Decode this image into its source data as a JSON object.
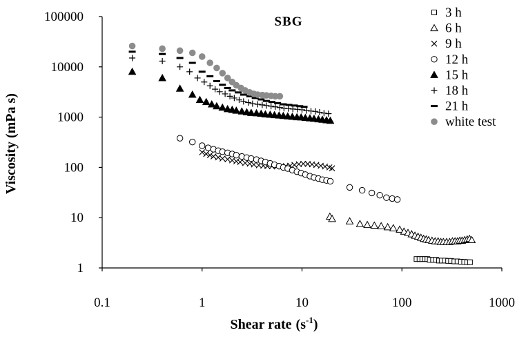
{
  "chart_data": {
    "type": "scatter",
    "title": "SBG",
    "xlabel": "Shear rate",
    "xlabel_unit_base": "(s",
    "xlabel_unit_exp": "-1",
    "xlabel_unit_close": ")",
    "ylabel": "Viscosity (mPa s)",
    "xscale": "log",
    "yscale": "log",
    "xlim": [
      0.1,
      1000
    ],
    "ylim": [
      1,
      100000
    ],
    "x_ticks": [
      {
        "value": 0.1,
        "label": "0.1"
      },
      {
        "value": 1,
        "label": "1"
      },
      {
        "value": 10,
        "label": "10"
      },
      {
        "value": 100,
        "label": "100"
      },
      {
        "value": 1000,
        "label": "1000"
      }
    ],
    "y_ticks": [
      {
        "value": 1,
        "label": "1"
      },
      {
        "value": 10,
        "label": "10"
      },
      {
        "value": 100,
        "label": "100"
      },
      {
        "value": 1000,
        "label": "1000"
      },
      {
        "value": 10000,
        "label": "10000"
      },
      {
        "value": 100000,
        "label": "100000"
      }
    ],
    "grid": false,
    "legend_position": "top-right",
    "series": [
      {
        "name": "3 h",
        "marker": "square-open",
        "points": [
          [
            140,
            1.5
          ],
          [
            150,
            1.5
          ],
          [
            160,
            1.5
          ],
          [
            170,
            1.5
          ],
          [
            180,
            1.5
          ],
          [
            190,
            1.45
          ],
          [
            205,
            1.45
          ],
          [
            220,
            1.45
          ],
          [
            235,
            1.4
          ],
          [
            250,
            1.4
          ],
          [
            270,
            1.4
          ],
          [
            290,
            1.38
          ],
          [
            310,
            1.38
          ],
          [
            335,
            1.35
          ],
          [
            360,
            1.35
          ],
          [
            390,
            1.33
          ],
          [
            420,
            1.32
          ],
          [
            450,
            1.3
          ],
          [
            480,
            1.3
          ]
        ]
      },
      {
        "name": "6 h",
        "marker": "triangle-open",
        "points": [
          [
            19,
            10.5
          ],
          [
            20,
            9.5
          ],
          [
            30,
            8.5
          ],
          [
            38,
            7.5
          ],
          [
            45,
            7.2
          ],
          [
            53,
            7.0
          ],
          [
            62,
            6.8
          ],
          [
            72,
            6.5
          ],
          [
            82,
            6.2
          ],
          [
            95,
            5.8
          ],
          [
            105,
            5.3
          ],
          [
            115,
            5.0
          ],
          [
            125,
            4.7
          ],
          [
            135,
            4.4
          ],
          [
            145,
            4.2
          ],
          [
            155,
            4.0
          ],
          [
            165,
            3.8
          ],
          [
            175,
            3.7
          ],
          [
            185,
            3.6
          ],
          [
            200,
            3.5
          ],
          [
            215,
            3.4
          ],
          [
            230,
            3.4
          ],
          [
            245,
            3.3
          ],
          [
            260,
            3.3
          ],
          [
            280,
            3.3
          ],
          [
            300,
            3.3
          ],
          [
            320,
            3.4
          ],
          [
            340,
            3.4
          ],
          [
            360,
            3.4
          ],
          [
            380,
            3.5
          ],
          [
            400,
            3.5
          ],
          [
            425,
            3.6
          ],
          [
            450,
            3.7
          ],
          [
            475,
            3.8
          ],
          [
            500,
            3.6
          ]
        ]
      },
      {
        "name": "9 h",
        "marker": "x",
        "points": [
          [
            1.0,
            200
          ],
          [
            1.1,
            185
          ],
          [
            1.2,
            175
          ],
          [
            1.3,
            165
          ],
          [
            1.45,
            158
          ],
          [
            1.6,
            150
          ],
          [
            1.8,
            145
          ],
          [
            2.0,
            138
          ],
          [
            2.2,
            132
          ],
          [
            2.4,
            128
          ],
          [
            2.7,
            122
          ],
          [
            3.0,
            118
          ],
          [
            3.3,
            114
          ],
          [
            3.7,
            110
          ],
          [
            4.1,
            108
          ],
          [
            4.5,
            106
          ],
          [
            5.0,
            105
          ],
          [
            5.6,
            104
          ],
          [
            6.2,
            104
          ],
          [
            6.9,
            106
          ],
          [
            7.6,
            108
          ],
          [
            8.4,
            112
          ],
          [
            9.3,
            116
          ],
          [
            10.3,
            118
          ],
          [
            11.4,
            117
          ],
          [
            12.6,
            115
          ],
          [
            13.9,
            112
          ],
          [
            15.4,
            108
          ],
          [
            17.0,
            104
          ],
          [
            18.8,
            100
          ],
          [
            20,
            96
          ]
        ]
      },
      {
        "name": "12 h",
        "marker": "circle-open",
        "points": [
          [
            0.6,
            380
          ],
          [
            0.8,
            320
          ],
          [
            1.0,
            270
          ],
          [
            1.15,
            245
          ],
          [
            1.3,
            230
          ],
          [
            1.45,
            215
          ],
          [
            1.6,
            205
          ],
          [
            1.8,
            195
          ],
          [
            2.0,
            185
          ],
          [
            2.2,
            175
          ],
          [
            2.5,
            165
          ],
          [
            2.8,
            157
          ],
          [
            3.1,
            150
          ],
          [
            3.5,
            143
          ],
          [
            3.9,
            135
          ],
          [
            4.3,
            128
          ],
          [
            4.8,
            120
          ],
          [
            5.3,
            113
          ],
          [
            5.9,
            106
          ],
          [
            6.5,
            100
          ],
          [
            7.2,
            95
          ],
          [
            8.0,
            88
          ],
          [
            8.9,
            82
          ],
          [
            9.8,
            77
          ],
          [
            10.8,
            72
          ],
          [
            12,
            67
          ],
          [
            13.2,
            63
          ],
          [
            14.6,
            60
          ],
          [
            16,
            57
          ],
          [
            17.6,
            55
          ],
          [
            19.2,
            53
          ],
          [
            30,
            40
          ],
          [
            40,
            35
          ],
          [
            50,
            31
          ],
          [
            60,
            28
          ],
          [
            70,
            25
          ],
          [
            80,
            24
          ],
          [
            90,
            23
          ]
        ]
      },
      {
        "name": "15 h",
        "marker": "triangle-filled",
        "points": [
          [
            0.2,
            8000
          ],
          [
            0.4,
            6000
          ],
          [
            0.6,
            3700
          ],
          [
            0.8,
            2800
          ],
          [
            0.95,
            2200
          ],
          [
            1.1,
            2000
          ],
          [
            1.25,
            1800
          ],
          [
            1.4,
            1650
          ],
          [
            1.6,
            1550
          ],
          [
            1.8,
            1450
          ],
          [
            2.0,
            1400
          ],
          [
            2.2,
            1350
          ],
          [
            2.5,
            1300
          ],
          [
            2.8,
            1250
          ],
          [
            3.1,
            1220
          ],
          [
            3.5,
            1200
          ],
          [
            3.9,
            1170
          ],
          [
            4.3,
            1140
          ],
          [
            4.8,
            1120
          ],
          [
            5.3,
            1100
          ],
          [
            5.9,
            1080
          ],
          [
            6.5,
            1060
          ],
          [
            7.2,
            1040
          ],
          [
            8.0,
            1020
          ],
          [
            8.9,
            1000
          ],
          [
            9.8,
            990
          ],
          [
            10.8,
            970
          ],
          [
            12,
            950
          ],
          [
            13.2,
            930
          ],
          [
            14.6,
            910
          ],
          [
            16,
            890
          ],
          [
            17.6,
            870
          ],
          [
            19.2,
            850
          ]
        ]
      },
      {
        "name": "18 h",
        "marker": "plus",
        "points": [
          [
            0.2,
            15000
          ],
          [
            0.4,
            13000
          ],
          [
            0.6,
            10000
          ],
          [
            0.75,
            8000
          ],
          [
            0.9,
            6000
          ],
          [
            1.05,
            5000
          ],
          [
            1.2,
            4200
          ],
          [
            1.35,
            3600
          ],
          [
            1.5,
            3200
          ],
          [
            1.7,
            2900
          ],
          [
            1.9,
            2600
          ],
          [
            2.1,
            2400
          ],
          [
            2.35,
            2200
          ],
          [
            2.6,
            2050
          ],
          [
            2.9,
            1950
          ],
          [
            3.2,
            1850
          ],
          [
            3.6,
            1800
          ],
          [
            4.0,
            1750
          ],
          [
            4.4,
            1700
          ],
          [
            4.9,
            1650
          ],
          [
            5.4,
            1600
          ],
          [
            6.0,
            1550
          ],
          [
            6.6,
            1500
          ],
          [
            7.3,
            1480
          ],
          [
            8.1,
            1450
          ],
          [
            9.0,
            1430
          ],
          [
            10,
            1400
          ],
          [
            11.1,
            1350
          ],
          [
            12.3,
            1320
          ],
          [
            13.6,
            1300
          ],
          [
            15,
            1250
          ],
          [
            16.6,
            1200
          ],
          [
            18.4,
            1170
          ]
        ]
      },
      {
        "name": "21 h",
        "marker": "dash",
        "points": [
          [
            0.2,
            20000
          ],
          [
            0.4,
            18000
          ],
          [
            0.6,
            15000
          ],
          [
            0.8,
            12000
          ],
          [
            1.0,
            8000
          ],
          [
            1.2,
            6500
          ],
          [
            1.4,
            5200
          ],
          [
            1.6,
            4400
          ],
          [
            1.8,
            3800
          ],
          [
            2.0,
            3400
          ],
          [
            2.3,
            3100
          ],
          [
            2.6,
            2800
          ],
          [
            3.0,
            2600
          ],
          [
            3.4,
            2400
          ],
          [
            3.9,
            2250
          ],
          [
            4.4,
            2100
          ],
          [
            5.0,
            2000
          ],
          [
            5.7,
            1900
          ],
          [
            6.5,
            1800
          ],
          [
            7.4,
            1750
          ],
          [
            8.4,
            1700
          ],
          [
            9.5,
            1650
          ],
          [
            10.5,
            1600
          ]
        ]
      },
      {
        "name": "white test",
        "marker": "circle-filled-gray",
        "points": [
          [
            0.2,
            26000
          ],
          [
            0.4,
            23000
          ],
          [
            0.6,
            21000
          ],
          [
            0.8,
            19000
          ],
          [
            1.0,
            16000
          ],
          [
            1.2,
            12000
          ],
          [
            1.4,
            9500
          ],
          [
            1.6,
            7500
          ],
          [
            1.8,
            6000
          ],
          [
            2.0,
            5000
          ],
          [
            2.2,
            4300
          ],
          [
            2.45,
            3800
          ],
          [
            2.7,
            3400
          ],
          [
            3.0,
            3100
          ],
          [
            3.3,
            2900
          ],
          [
            3.6,
            2800
          ],
          [
            4.0,
            2750
          ],
          [
            4.4,
            2700
          ],
          [
            4.9,
            2650
          ],
          [
            5.4,
            2600
          ],
          [
            6.0,
            2600
          ]
        ]
      }
    ]
  }
}
